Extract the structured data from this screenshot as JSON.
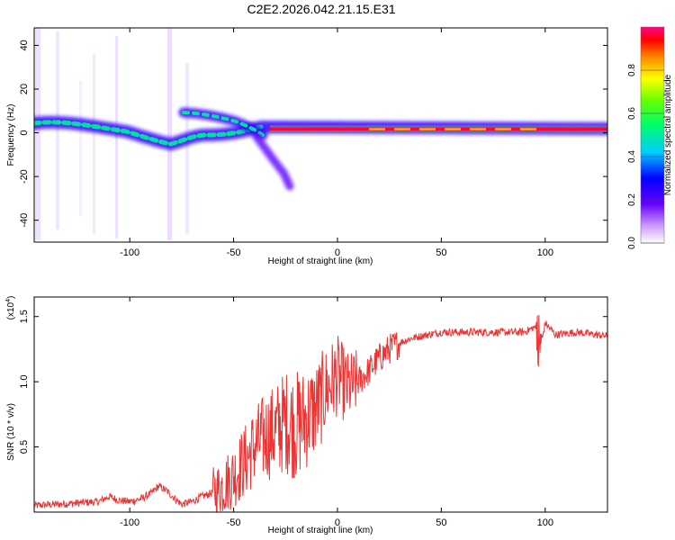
{
  "title": "C2E2.2026.042.21.15.E31",
  "colors": {
    "snr_line": "#ee3333",
    "frame": "#000000",
    "tone_band": "#448844"
  },
  "chart_data": [
    {
      "type": "heatmap",
      "name": "spectrogram",
      "xlabel": "Height of straight line (km)",
      "ylabel": "Frequency (Hz)",
      "xlim": [
        -146,
        130
      ],
      "ylim": [
        -50,
        48
      ],
      "xticks": [
        -100,
        -50,
        0,
        50,
        100
      ],
      "yticks": [
        -40,
        -20,
        0,
        20,
        40
      ],
      "colorbar": {
        "label": "Normalized spectral amplitude",
        "range": [
          0.0,
          1.0
        ],
        "ticks": [
          "0.0",
          "0.2",
          "0.4",
          "0.6",
          "0.8"
        ],
        "tick_values": [
          0.0,
          0.2,
          0.4,
          0.6,
          0.8
        ]
      },
      "features": [
        {
          "name": "main-trace",
          "x": [
            -146,
            -120,
            -100,
            -90,
            -80,
            -70,
            -60,
            -50,
            -40,
            -30,
            -20,
            0,
            20,
            40,
            60,
            80,
            100,
            130
          ],
          "freq_hz": [
            4,
            3,
            1,
            -1,
            -3,
            -3,
            -2,
            0,
            1,
            2,
            1,
            1,
            1,
            1,
            1,
            1,
            1,
            1
          ]
        },
        {
          "name": "upper-branch",
          "x": [
            -73,
            -60,
            -50,
            -40,
            -33,
            -28
          ],
          "freq_hz": [
            9,
            8,
            6,
            4,
            2,
            0
          ]
        },
        {
          "name": "lower-branch",
          "x": [
            -38,
            -30,
            -25,
            -20
          ],
          "freq_hz": [
            -4,
            -10,
            -15,
            -24
          ]
        },
        {
          "name": "steady-tone",
          "x": [
            -20,
            130
          ],
          "freq_hz": [
            1,
            1
          ]
        }
      ]
    },
    {
      "type": "line",
      "name": "snr",
      "xlabel": "Height of straight line (km)",
      "ylabel": "SNR (10 * v/v)",
      "scale_note": "(x10",
      "scale_exp": "4",
      "xlim": [
        -146,
        130
      ],
      "ylim": [
        0,
        1.65
      ],
      "xticks": [
        -100,
        -50,
        0,
        50,
        100
      ],
      "yticks": [
        0.5,
        1.0,
        1.5
      ],
      "ytick_labels": [
        "0.5",
        "1.0",
        "1.5"
      ],
      "series": [
        {
          "name": "SNR",
          "x": [
            -146,
            -135,
            -125,
            -115,
            -110,
            -105,
            -100,
            -95,
            -90,
            -86,
            -82,
            -78,
            -75,
            -70,
            -65,
            -60,
            -55,
            -50,
            -45,
            -40,
            -35,
            -30,
            -25,
            -20,
            -15,
            -10,
            -5,
            0,
            5,
            10,
            15,
            20,
            25,
            30,
            35,
            40,
            50,
            60,
            70,
            80,
            90,
            95,
            98,
            100,
            105,
            115,
            130
          ],
          "y": [
            0.05,
            0.06,
            0.07,
            0.08,
            0.12,
            0.09,
            0.08,
            0.1,
            0.14,
            0.2,
            0.16,
            0.1,
            0.06,
            0.08,
            0.12,
            0.15,
            0.2,
            0.28,
            0.38,
            0.5,
            0.58,
            0.62,
            0.7,
            0.66,
            0.72,
            0.8,
            0.95,
            1.05,
            0.95,
            1.0,
            1.08,
            1.18,
            1.25,
            1.3,
            1.33,
            1.35,
            1.38,
            1.38,
            1.38,
            1.38,
            1.38,
            1.42,
            1.28,
            1.45,
            1.36,
            1.38,
            1.35
          ]
        }
      ]
    }
  ]
}
